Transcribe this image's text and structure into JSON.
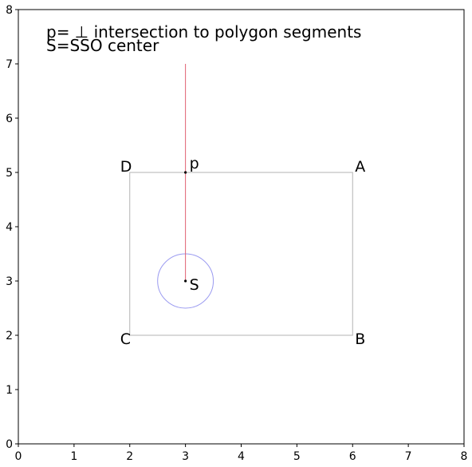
{
  "chart_data": {
    "type": "scatter",
    "title": "",
    "xlabel": "",
    "ylabel": "",
    "xlim": [
      0,
      8
    ],
    "ylim": [
      0,
      8
    ],
    "grid": false,
    "x_ticks": [
      "0",
      "1",
      "2",
      "3",
      "4",
      "5",
      "6",
      "7",
      "8"
    ],
    "y_ticks": [
      "0",
      "1",
      "2",
      "3",
      "4",
      "5",
      "6",
      "7",
      "8"
    ],
    "annotations": [
      "p= ⊥ intersection to polygon segments",
      "S=SSO center"
    ],
    "polygon": {
      "color": "#b3b3b3",
      "vertices": [
        {
          "label": "A",
          "x": 6,
          "y": 5
        },
        {
          "label": "B",
          "x": 6,
          "y": 2
        },
        {
          "label": "C",
          "x": 2,
          "y": 2
        },
        {
          "label": "D",
          "x": 2,
          "y": 5
        }
      ]
    },
    "points": [
      {
        "label": "p",
        "x": 3,
        "y": 5
      },
      {
        "label": "S",
        "x": 3,
        "y": 3
      }
    ],
    "perpendicular": {
      "color": "#e06070",
      "x1": 3,
      "y1": 3,
      "x2": 3,
      "y2": 7
    },
    "circle": {
      "color": "#9a9af0",
      "cx": 3,
      "cy": 3,
      "r": 0.5
    }
  }
}
